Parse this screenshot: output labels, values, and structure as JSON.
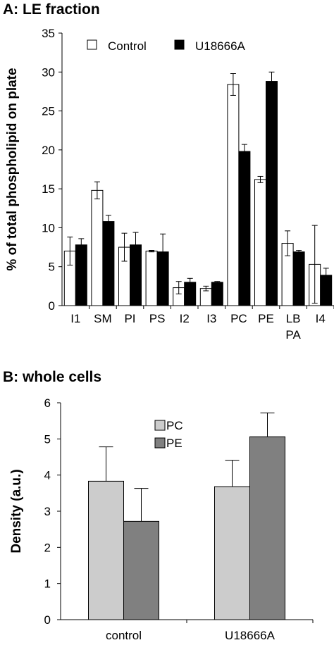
{
  "chart_data": [
    {
      "type": "bar",
      "panel_title": "A: LE fraction",
      "ylabel": "% of total phospholipid on plate",
      "xlabel": "",
      "ylim": [
        0,
        35
      ],
      "yticks": [
        "0",
        "5",
        "10",
        "15",
        "20",
        "25",
        "30",
        "35"
      ],
      "categories": [
        "I1",
        "SM",
        "PI",
        "PS",
        "I2",
        "I3",
        "PC",
        "PE",
        "LB PA",
        "I4"
      ],
      "series": [
        {
          "name": "Control",
          "color": "#ffffff",
          "values": [
            7.0,
            14.8,
            7.5,
            7.0,
            2.3,
            2.2,
            28.4,
            16.2,
            8.0,
            5.3
          ],
          "errors": [
            1.8,
            1.1,
            1.8,
            0.1,
            0.8,
            0.3,
            1.4,
            0.4,
            1.6,
            5.0
          ]
        },
        {
          "name": "U18666A",
          "color": "#000000",
          "values": [
            7.8,
            10.8,
            7.8,
            6.9,
            3.0,
            3.0,
            19.8,
            28.8,
            6.9,
            3.9
          ],
          "errors": [
            0.8,
            0.8,
            1.6,
            2.3,
            0.5,
            0.1,
            0.9,
            1.2,
            0.2,
            0.9
          ]
        }
      ],
      "legend": "top"
    },
    {
      "type": "bar",
      "panel_title": "B: whole cells",
      "ylabel": "Density (a.u.)",
      "xlabel": "",
      "ylim": [
        0,
        6
      ],
      "yticks": [
        "0",
        "1",
        "2",
        "3",
        "4",
        "5",
        "6"
      ],
      "categories": [
        "control",
        "U18666A"
      ],
      "series": [
        {
          "name": "PC",
          "color": "#cccccc",
          "values": [
            3.83,
            3.68
          ],
          "errors": [
            0.95,
            0.73
          ]
        },
        {
          "name": "PE",
          "color": "#808080",
          "values": [
            2.72,
            5.06
          ],
          "errors": [
            0.91,
            0.66
          ]
        }
      ],
      "legend": "top-right"
    }
  ]
}
